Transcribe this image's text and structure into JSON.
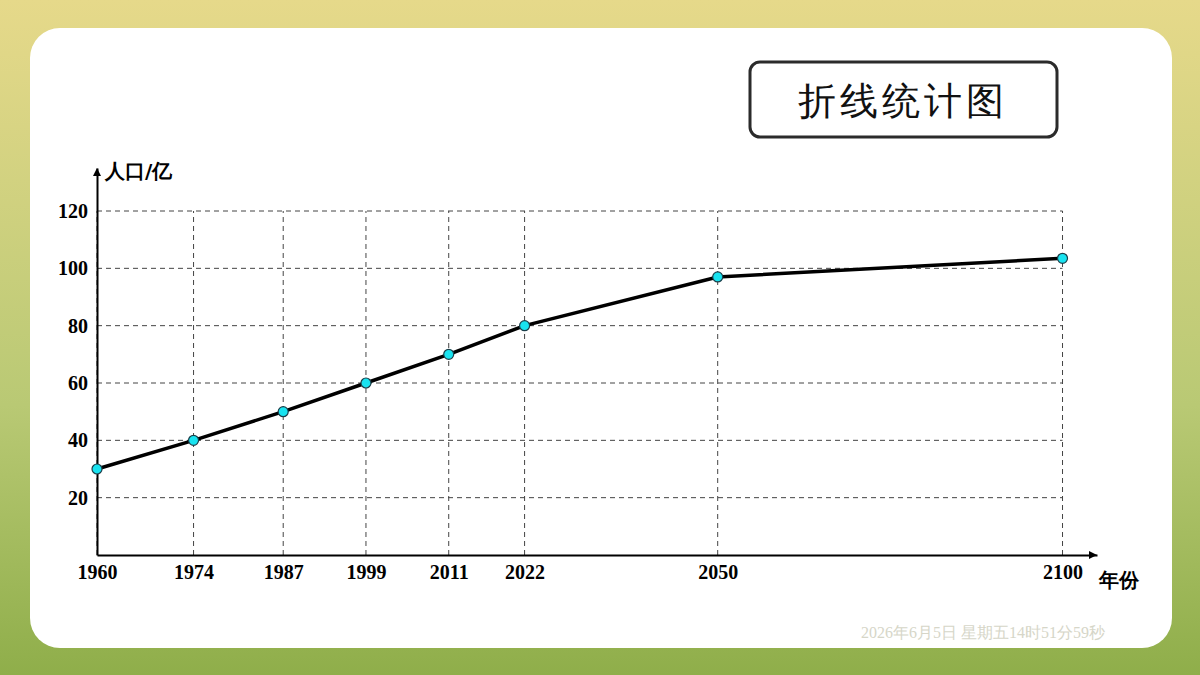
{
  "chart_data": {
    "type": "line",
    "title": "折线统计图",
    "x_label": "年份",
    "y_label": "人口/亿",
    "x": [
      1960,
      1974,
      1987,
      1999,
      2011,
      2022,
      2050,
      2100
    ],
    "values": [
      30,
      40,
      50,
      60,
      70,
      80,
      97,
      103.5
    ],
    "color": "#000000",
    "marker": "circle",
    "line_style": "solid",
    "xlim": [
      1960,
      2105
    ],
    "xticks": [
      1960,
      1974,
      1987,
      1999,
      2011,
      2022,
      2050,
      2100
    ],
    "ylim": [
      0,
      135
    ],
    "yticks": [
      20,
      40,
      60,
      80,
      100,
      120
    ],
    "grid": true,
    "annotations": [
      "2026年6月5日 星期五14时51分59秒"
    ]
  }
}
